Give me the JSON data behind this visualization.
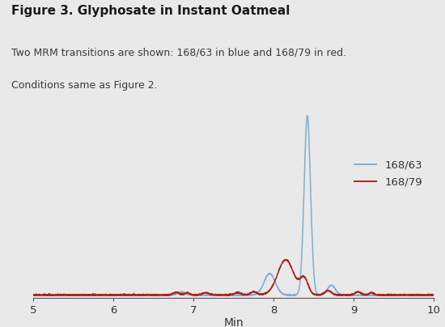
{
  "title": "Figure 3. Glyphosate in Instant Oatmeal",
  "subtitle1": "Two MRM transitions are shown: 168/63 in blue and 168/79 in red.",
  "subtitle2": "Conditions same as Figure 2.",
  "xlabel": "Min",
  "xlim": [
    5,
    10
  ],
  "background_color": "#e9e9e9",
  "plot_bg_color": "#e9e9e9",
  "blue_color": "#7bafd4",
  "red_color": "#b22222",
  "blue_label": "168/63",
  "red_label": "168/79",
  "title_fontsize": 11,
  "subtitle_fontsize": 9,
  "axis_fontsize": 10
}
